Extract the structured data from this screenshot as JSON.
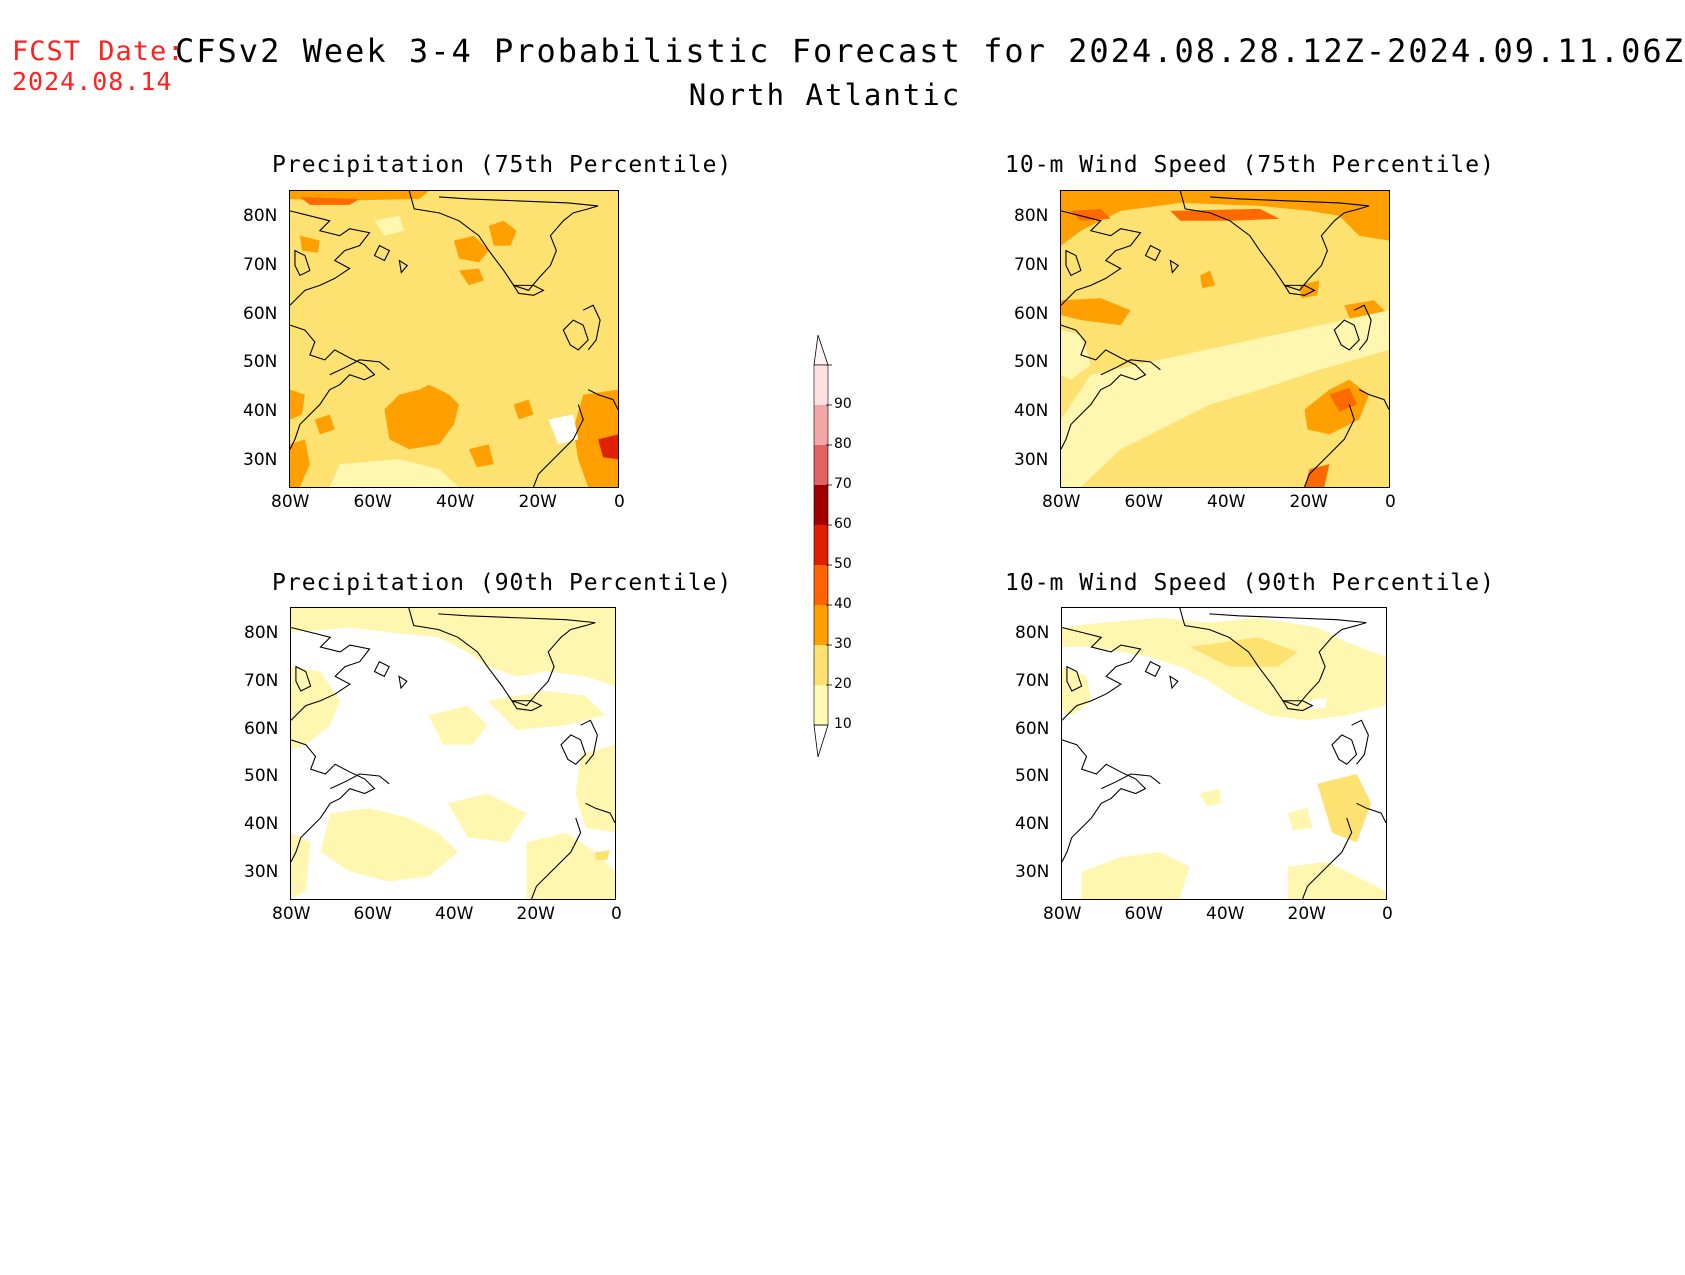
{
  "header": {
    "fcst_label": "FCST Date:",
    "fcst_date": "2024.08.14",
    "title": "CFSv2 Week 3-4 Probabilistic Forecast for 2024.08.28.12Z-2024.09.11.06Z",
    "subtitle": "North Atlantic"
  },
  "axes": {
    "lon_labels": [
      "80W",
      "60W",
      "40W",
      "20W",
      "0"
    ],
    "lat_labels": [
      "80N",
      "70N",
      "60N",
      "50N",
      "40N",
      "30N"
    ]
  },
  "panels": [
    {
      "title": "Precipitation (75th Percentile)"
    },
    {
      "title": "10-m Wind Speed (75th Percentile)"
    },
    {
      "title": "Precipitation (90th Percentile)"
    },
    {
      "title": "10-m Wind Speed (90th Percentile)"
    }
  ],
  "colorbar": {
    "labels": [
      "90",
      "80",
      "70",
      "60",
      "50",
      "40",
      "30",
      "20",
      "10"
    ],
    "colors": [
      "#fde0e0",
      "#f4a6a6",
      "#e06262",
      "#a00000",
      "#e01e00",
      "#ff6400",
      "#ffa000",
      "#fde070",
      "#fffab4"
    ]
  },
  "palette": {
    "white": "#ffffff",
    "pale": "#fff7b0",
    "light": "#fde272",
    "orange": "#ffa000",
    "dark_orange": "#ff6a00",
    "red": "#e02000"
  }
}
